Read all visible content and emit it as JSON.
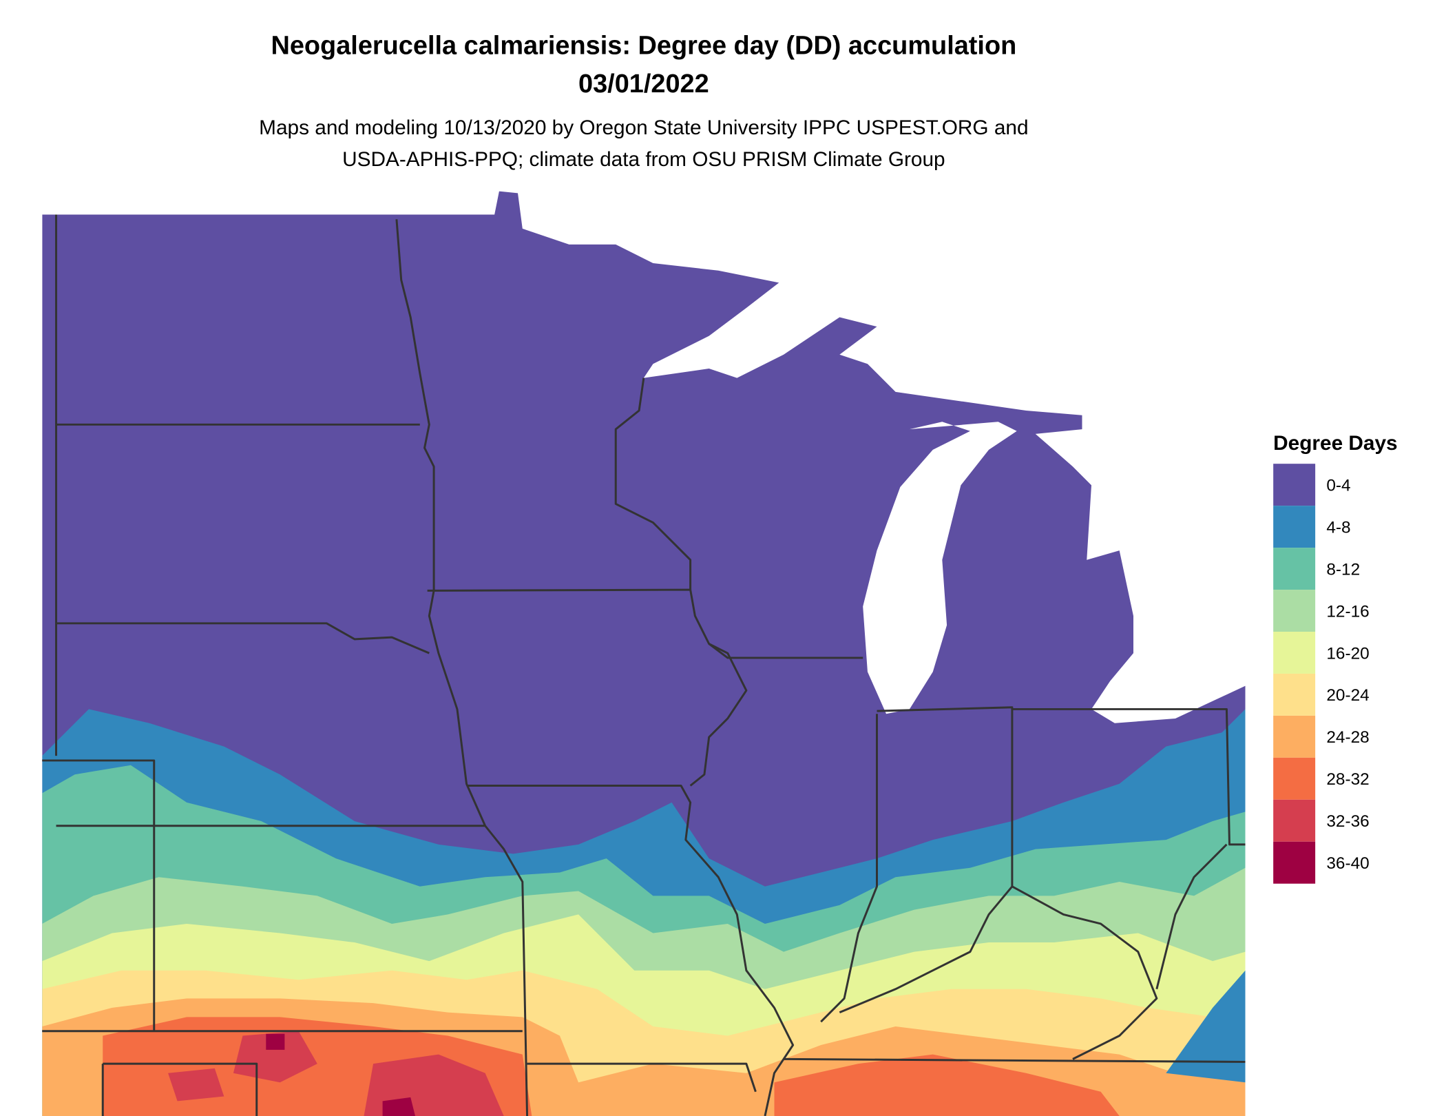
{
  "header": {
    "title": [
      "Neogalerucella calmariensis: Degree day (DD) accumulation",
      "03/01/2022"
    ],
    "subtitle": [
      "Maps and modeling 10/13/2020 by Oregon State University IPPC USPEST.ORG and",
      "USDA-APHIS-PPQ; climate data from OSU PRISM Climate Group"
    ]
  },
  "legend": {
    "title": "Degree Days",
    "items": [
      {
        "label": "0-4",
        "color": "#5e4fa2"
      },
      {
        "label": "4-8",
        "color": "#3288bd"
      },
      {
        "label": "8-12",
        "color": "#66c2a5"
      },
      {
        "label": "12-16",
        "color": "#abdda4"
      },
      {
        "label": "16-20",
        "color": "#e6f598"
      },
      {
        "label": "20-24",
        "color": "#fee08b"
      },
      {
        "label": "24-28",
        "color": "#fdae61"
      },
      {
        "label": "28-32",
        "color": "#f46d43"
      },
      {
        "label": "32-36",
        "color": "#d53e4f"
      },
      {
        "label": "36-40",
        "color": "#9e0142"
      }
    ]
  }
}
